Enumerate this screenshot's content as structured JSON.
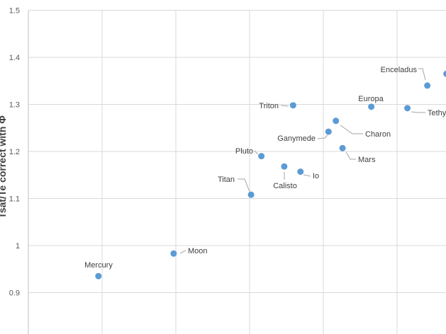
{
  "chart_data": {
    "type": "scatter",
    "title": "",
    "xlabel": "",
    "ylabel": "Tsat/Te correct with Φ",
    "ylim": [
      0.85,
      1.5
    ],
    "yticks": [
      "1.5",
      "1.4",
      "1.3",
      "1.2",
      "1.1",
      "1",
      "0.9"
    ],
    "grid": true,
    "marker_color": "#5B9BD5",
    "points": [
      {
        "label": "Mercury",
        "x": 0.95,
        "y": 0.935
      },
      {
        "label": "Moon",
        "x": 1.97,
        "y": 0.983
      },
      {
        "label": "Titan",
        "x": 3.02,
        "y": 1.108
      },
      {
        "label": "Pluto",
        "x": 3.16,
        "y": 1.19
      },
      {
        "label": "Calisto",
        "x": 3.47,
        "y": 1.168
      },
      {
        "label": "Io",
        "x": 3.69,
        "y": 1.157
      },
      {
        "label": "Triton",
        "x": 3.59,
        "y": 1.298
      },
      {
        "label": "Ganymede",
        "x": 4.07,
        "y": 1.242
      },
      {
        "label": "Charon",
        "x": 4.17,
        "y": 1.265
      },
      {
        "label": "Mars",
        "x": 4.26,
        "y": 1.207
      },
      {
        "label": "Europa",
        "x": 4.65,
        "y": 1.295
      },
      {
        "label": "Tethys",
        "x": 5.14,
        "y": 1.292
      },
      {
        "label": "Enceladus",
        "x": 5.41,
        "y": 1.34
      },
      {
        "label": "",
        "x": 5.67,
        "y": 1.365
      }
    ]
  }
}
